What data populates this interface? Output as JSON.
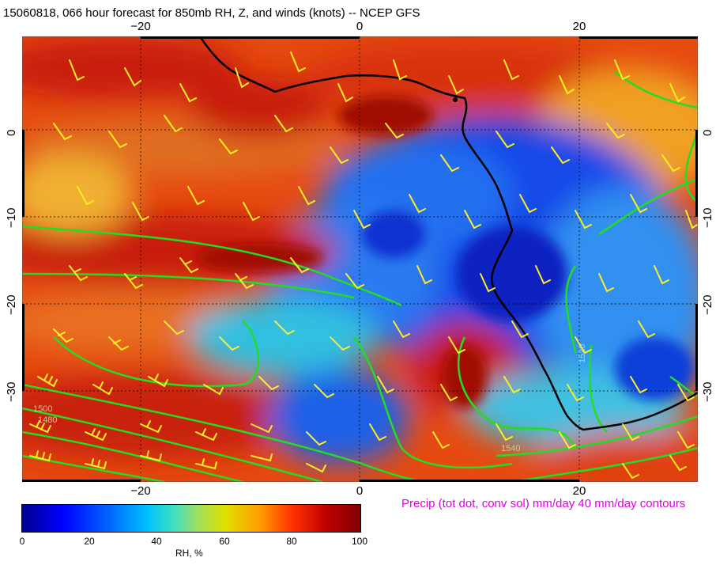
{
  "title": "15060818, 066 hour forecast for 850mb RH, Z, and winds (knots)  -- NCEP GFS",
  "map": {
    "lon_ticks": [
      "−20",
      "0",
      "20"
    ],
    "lat_ticks": [
      "0",
      "−10",
      "−20",
      "−30"
    ],
    "contour_labels": [
      "1500",
      "1480",
      "1520",
      "1540"
    ]
  },
  "precip_note": "Precip (tot dot, conv sol) mm/day 40 mm/day contours",
  "colorbar": {
    "ticks": [
      "0",
      "20",
      "40",
      "60",
      "80",
      "100"
    ],
    "label": "RH, %"
  },
  "colors": {
    "coast": "#000000",
    "contour": "#22dd22",
    "barb": "#ffee22",
    "note": "#e000e0"
  }
}
